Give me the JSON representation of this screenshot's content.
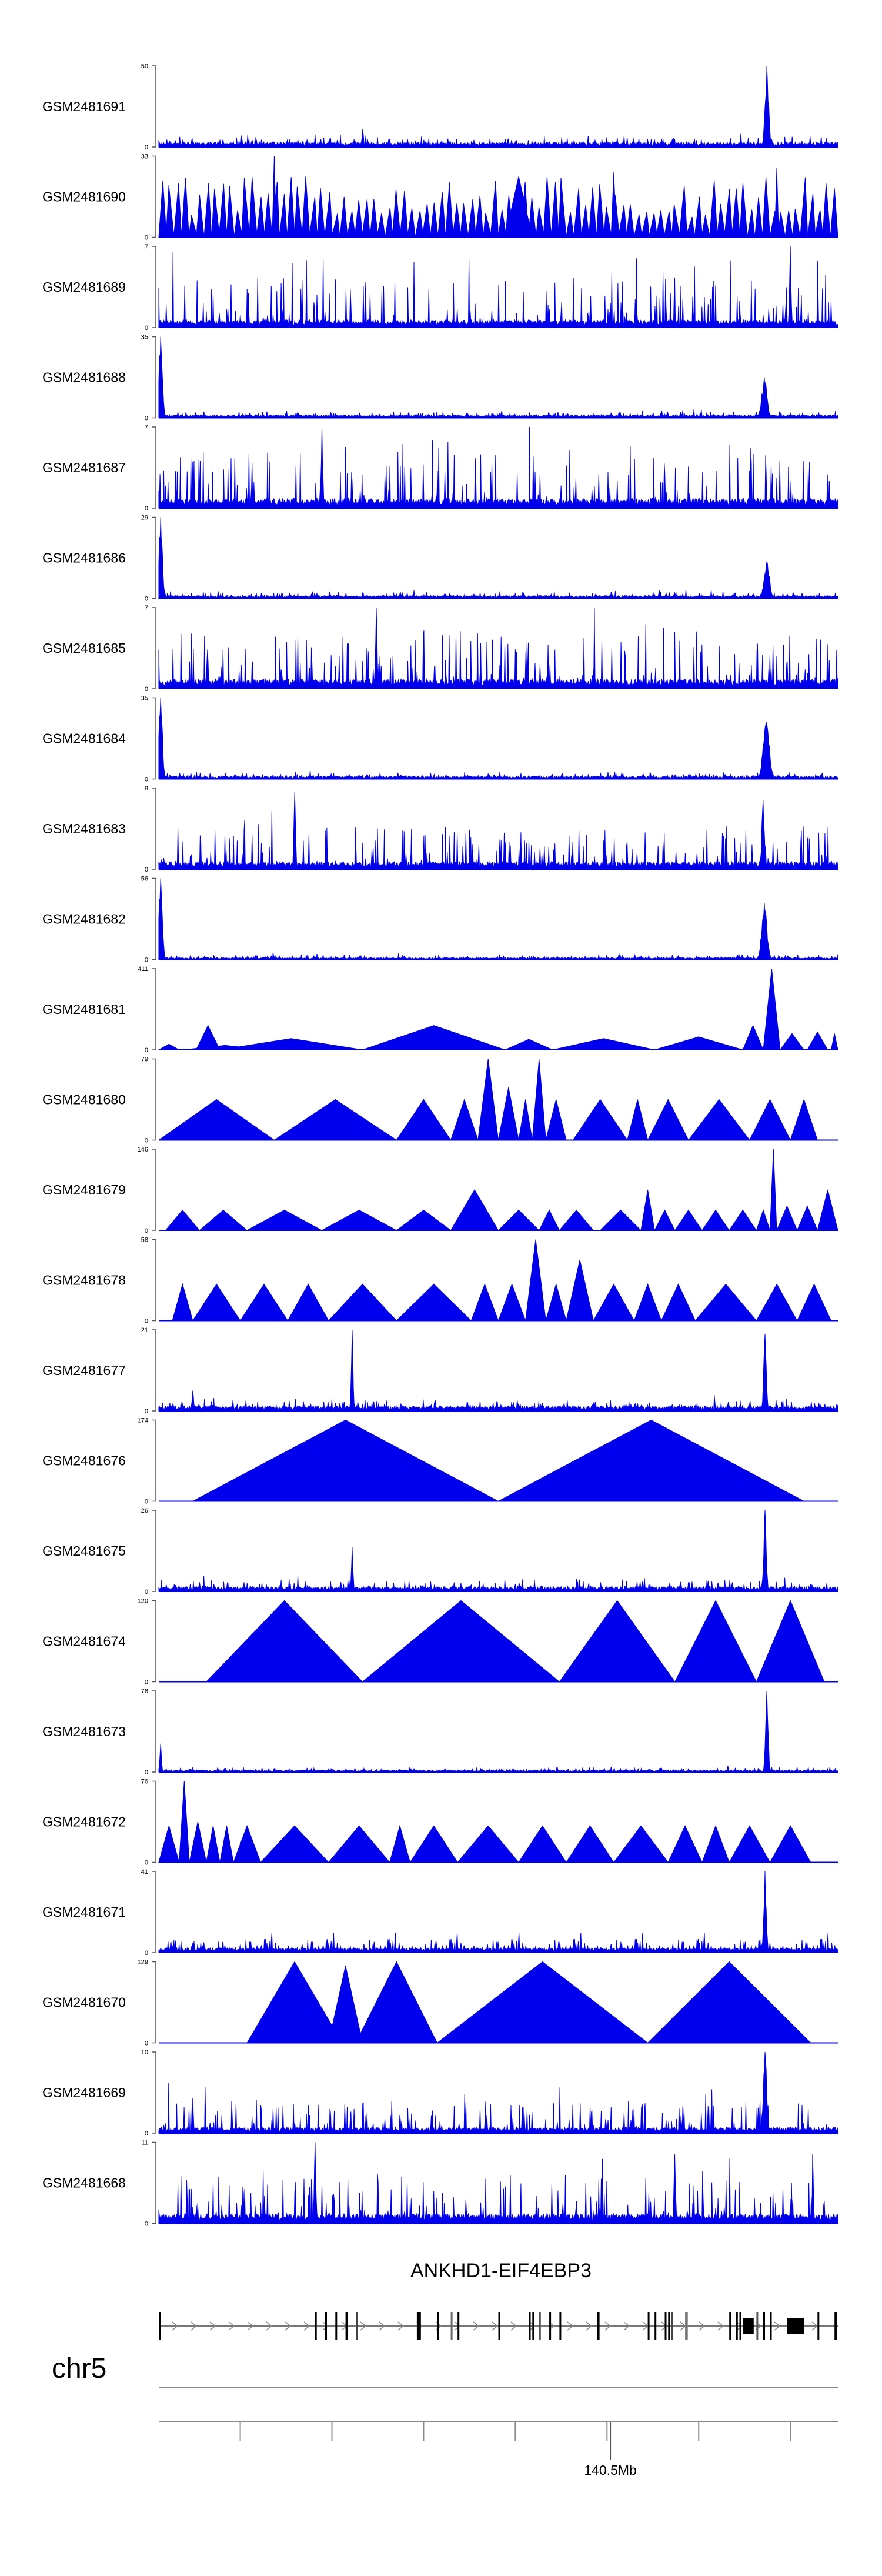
{
  "chart_data": {
    "type": "area",
    "colors": {
      "signal": "#0000ee",
      "axis": "#555555",
      "gene": "#000000"
    },
    "x_axis": {
      "label": "140.5Mb",
      "label_position": 0.665
    },
    "tracks": [
      {
        "name": "GSM2481691",
        "max_label": "50",
        "min_label": "0",
        "style": "dense",
        "max": 50,
        "baseline": 0.05,
        "noise": 0.08,
        "peaks": [
          {
            "x": 0.895,
            "h": 1.0,
            "w": 0.004
          },
          {
            "x": 0.3,
            "h": 0.22,
            "w": 0.002
          }
        ]
      },
      {
        "name": "GSM2481690",
        "max_label": "33",
        "min_label": "0",
        "style": "spiky",
        "max": 33,
        "density": 90,
        "minh": 0.25,
        "maxh": 0.75,
        "peaks": [
          {
            "x": 0.17,
            "h": 1.0,
            "w": 0.003
          },
          {
            "x": 0.53,
            "h": 0.75,
            "w": 0.02
          },
          {
            "x": 0.67,
            "h": 0.8,
            "w": 0.004
          },
          {
            "x": 0.91,
            "h": 0.85,
            "w": 0.003
          }
        ]
      },
      {
        "name": "GSM2481689",
        "max_label": "7",
        "min_label": "0",
        "style": "dense",
        "max": 7,
        "baseline": 0.08,
        "noise": 0.55,
        "peaks": [
          {
            "x": 0.93,
            "h": 1.0,
            "w": 0.002
          }
        ]
      },
      {
        "name": "GSM2481688",
        "max_label": "35",
        "min_label": "0",
        "style": "dense",
        "max": 35,
        "baseline": 0.03,
        "noise": 0.05,
        "peaks": [
          {
            "x": 0.003,
            "h": 1.0,
            "w": 0.004
          },
          {
            "x": 0.892,
            "h": 0.5,
            "w": 0.005
          }
        ]
      },
      {
        "name": "GSM2481687",
        "max_label": "7",
        "min_label": "0",
        "style": "dense",
        "max": 7,
        "baseline": 0.1,
        "noise": 0.6,
        "peaks": [
          {
            "x": 0.24,
            "h": 1.0,
            "w": 0.002
          }
        ]
      },
      {
        "name": "GSM2481686",
        "max_label": "29",
        "min_label": "0",
        "style": "dense",
        "max": 29,
        "baseline": 0.03,
        "noise": 0.06,
        "peaks": [
          {
            "x": 0.003,
            "h": 1.0,
            "w": 0.004
          },
          {
            "x": 0.895,
            "h": 0.45,
            "w": 0.005
          }
        ]
      },
      {
        "name": "GSM2481685",
        "max_label": "7",
        "min_label": "0",
        "style": "dense",
        "max": 7,
        "baseline": 0.1,
        "noise": 0.6,
        "peaks": [
          {
            "x": 0.32,
            "h": 1.0,
            "w": 0.002
          }
        ]
      },
      {
        "name": "GSM2481684",
        "max_label": "35",
        "min_label": "0",
        "style": "dense",
        "max": 35,
        "baseline": 0.03,
        "noise": 0.05,
        "peaks": [
          {
            "x": 0.003,
            "h": 1.0,
            "w": 0.004
          },
          {
            "x": 0.894,
            "h": 0.7,
            "w": 0.006
          }
        ]
      },
      {
        "name": "GSM2481683",
        "max_label": "8",
        "min_label": "0",
        "style": "dense",
        "max": 8,
        "baseline": 0.08,
        "noise": 0.45,
        "peaks": [
          {
            "x": 0.2,
            "h": 0.95,
            "w": 0.002
          },
          {
            "x": 0.89,
            "h": 0.85,
            "w": 0.003
          }
        ]
      },
      {
        "name": "GSM2481682",
        "max_label": "56",
        "min_label": "0",
        "style": "dense",
        "max": 56,
        "baseline": 0.02,
        "noise": 0.04,
        "peaks": [
          {
            "x": 0.003,
            "h": 1.0,
            "w": 0.004
          },
          {
            "x": 0.892,
            "h": 0.7,
            "w": 0.005
          }
        ]
      },
      {
        "name": "GSM2481681",
        "max_label": "411",
        "min_label": "0",
        "style": "triangles",
        "max": 411,
        "tri": [
          [
            0.0,
            0.03,
            0.07
          ],
          [
            0.035,
            0.16,
            0.055
          ],
          [
            0.055,
            0.09,
            0.3
          ],
          [
            0.09,
            0.3,
            0.14
          ],
          [
            0.3,
            0.51,
            0.3
          ],
          [
            0.51,
            0.58,
            0.13
          ],
          [
            0.58,
            0.73,
            0.14
          ],
          [
            0.73,
            0.86,
            0.16
          ],
          [
            0.86,
            0.89,
            0.3
          ],
          [
            0.89,
            0.915,
            1.0
          ],
          [
            0.915,
            0.95,
            0.2
          ],
          [
            0.955,
            0.985,
            0.22
          ],
          [
            0.99,
            1.0,
            0.2
          ]
        ]
      },
      {
        "name": "GSM2481680",
        "max_label": "79",
        "min_label": "0",
        "style": "triangles",
        "max": 79,
        "tri": [
          [
            0.0,
            0.17,
            0.5
          ],
          [
            0.17,
            0.35,
            0.5
          ],
          [
            0.35,
            0.43,
            0.5
          ],
          [
            0.43,
            0.47,
            0.5
          ],
          [
            0.47,
            0.5,
            1.0
          ],
          [
            0.5,
            0.53,
            0.65
          ],
          [
            0.53,
            0.55,
            0.5
          ],
          [
            0.55,
            0.57,
            1.0
          ],
          [
            0.57,
            0.6,
            0.5
          ],
          [
            0.61,
            0.69,
            0.5
          ],
          [
            0.69,
            0.72,
            0.5
          ],
          [
            0.72,
            0.78,
            0.5
          ],
          [
            0.78,
            0.87,
            0.5
          ],
          [
            0.87,
            0.93,
            0.5
          ],
          [
            0.93,
            0.97,
            0.5
          ]
        ]
      },
      {
        "name": "GSM2481679",
        "max_label": "146",
        "min_label": "0",
        "style": "triangles",
        "max": 146,
        "tri": [
          [
            0.01,
            0.06,
            0.25
          ],
          [
            0.06,
            0.13,
            0.25
          ],
          [
            0.13,
            0.24,
            0.25
          ],
          [
            0.24,
            0.35,
            0.25
          ],
          [
            0.35,
            0.43,
            0.25
          ],
          [
            0.43,
            0.5,
            0.5
          ],
          [
            0.5,
            0.56,
            0.25
          ],
          [
            0.56,
            0.59,
            0.25
          ],
          [
            0.59,
            0.64,
            0.25
          ],
          [
            0.65,
            0.71,
            0.25
          ],
          [
            0.71,
            0.73,
            0.5
          ],
          [
            0.73,
            0.76,
            0.25
          ],
          [
            0.76,
            0.8,
            0.25
          ],
          [
            0.8,
            0.84,
            0.25
          ],
          [
            0.84,
            0.88,
            0.25
          ],
          [
            0.88,
            0.9,
            0.25
          ],
          [
            0.9,
            0.91,
            1.0
          ],
          [
            0.91,
            0.94,
            0.3
          ],
          [
            0.94,
            0.97,
            0.3
          ],
          [
            0.97,
            1.0,
            0.5
          ]
        ]
      },
      {
        "name": "GSM2481678",
        "max_label": "58",
        "min_label": "0",
        "style": "triangles",
        "max": 58,
        "tri": [
          [
            0.02,
            0.05,
            0.45
          ],
          [
            0.05,
            0.12,
            0.45
          ],
          [
            0.12,
            0.19,
            0.45
          ],
          [
            0.19,
            0.25,
            0.45
          ],
          [
            0.25,
            0.35,
            0.45
          ],
          [
            0.35,
            0.46,
            0.45
          ],
          [
            0.46,
            0.5,
            0.45
          ],
          [
            0.5,
            0.54,
            0.45
          ],
          [
            0.54,
            0.57,
            1.0
          ],
          [
            0.57,
            0.6,
            0.45
          ],
          [
            0.6,
            0.64,
            0.75
          ],
          [
            0.64,
            0.7,
            0.45
          ],
          [
            0.7,
            0.74,
            0.45
          ],
          [
            0.74,
            0.79,
            0.45
          ],
          [
            0.79,
            0.88,
            0.45
          ],
          [
            0.88,
            0.94,
            0.45
          ],
          [
            0.94,
            0.99,
            0.45
          ]
        ]
      },
      {
        "name": "GSM2481677",
        "max_label": "21",
        "min_label": "0",
        "style": "dense",
        "max": 21,
        "baseline": 0.05,
        "noise": 0.1,
        "peaks": [
          {
            "x": 0.285,
            "h": 1.0,
            "w": 0.002
          },
          {
            "x": 0.893,
            "h": 0.95,
            "w": 0.003
          },
          {
            "x": 0.05,
            "h": 0.25,
            "w": 0.002
          }
        ]
      },
      {
        "name": "GSM2481676",
        "max_label": "174",
        "min_label": "0",
        "style": "triangles",
        "max": 174,
        "tri": [
          [
            0.05,
            0.5,
            1.0
          ],
          [
            0.5,
            0.95,
            1.0
          ]
        ]
      },
      {
        "name": "GSM2481675",
        "max_label": "26",
        "min_label": "0",
        "style": "dense",
        "max": 26,
        "baseline": 0.05,
        "noise": 0.1,
        "peaks": [
          {
            "x": 0.285,
            "h": 0.55,
            "w": 0.002
          },
          {
            "x": 0.893,
            "h": 1.0,
            "w": 0.003
          }
        ]
      },
      {
        "name": "GSM2481674",
        "max_label": "120",
        "min_label": "0",
        "style": "triangles",
        "max": 120,
        "tri": [
          [
            0.07,
            0.3,
            1.0
          ],
          [
            0.3,
            0.59,
            1.0
          ],
          [
            0.59,
            0.76,
            1.0
          ],
          [
            0.76,
            0.88,
            1.0
          ],
          [
            0.88,
            0.98,
            1.0
          ]
        ]
      },
      {
        "name": "GSM2481673",
        "max_label": "76",
        "min_label": "0",
        "style": "dense",
        "max": 76,
        "baseline": 0.02,
        "noise": 0.04,
        "peaks": [
          {
            "x": 0.895,
            "h": 1.0,
            "w": 0.003
          },
          {
            "x": 0.003,
            "h": 0.35,
            "w": 0.002
          }
        ]
      },
      {
        "name": "GSM2481672",
        "max_label": "76",
        "min_label": "0",
        "style": "triangles",
        "max": 76,
        "tri": [
          [
            0.0,
            0.03,
            0.45
          ],
          [
            0.03,
            0.045,
            1.0
          ],
          [
            0.045,
            0.07,
            0.5
          ],
          [
            0.07,
            0.09,
            0.45
          ],
          [
            0.09,
            0.11,
            0.45
          ],
          [
            0.11,
            0.15,
            0.45
          ],
          [
            0.15,
            0.25,
            0.45
          ],
          [
            0.25,
            0.34,
            0.45
          ],
          [
            0.34,
            0.37,
            0.45
          ],
          [
            0.37,
            0.44,
            0.45
          ],
          [
            0.44,
            0.53,
            0.45
          ],
          [
            0.53,
            0.6,
            0.45
          ],
          [
            0.6,
            0.67,
            0.45
          ],
          [
            0.67,
            0.75,
            0.45
          ],
          [
            0.75,
            0.8,
            0.45
          ],
          [
            0.8,
            0.84,
            0.45
          ],
          [
            0.84,
            0.9,
            0.45
          ],
          [
            0.9,
            0.96,
            0.45
          ]
        ]
      },
      {
        "name": "GSM2481671",
        "max_label": "41",
        "min_label": "0",
        "style": "dense",
        "max": 41,
        "baseline": 0.05,
        "noise": 0.12,
        "peaks": [
          {
            "x": 0.893,
            "h": 1.0,
            "w": 0.003
          }
        ]
      },
      {
        "name": "GSM2481670",
        "max_label": "129",
        "min_label": "0",
        "style": "triangles",
        "max": 129,
        "tri": [
          [
            0.13,
            0.27,
            1.0
          ],
          [
            0.25,
            0.3,
            0.95
          ],
          [
            0.29,
            0.41,
            1.0
          ],
          [
            0.41,
            0.72,
            1.0
          ],
          [
            0.72,
            0.96,
            1.0
          ]
        ]
      },
      {
        "name": "GSM2481669",
        "max_label": "10",
        "min_label": "0",
        "style": "dense",
        "max": 10,
        "baseline": 0.06,
        "noise": 0.35,
        "peaks": [
          {
            "x": 0.893,
            "h": 1.0,
            "w": 0.004
          }
        ]
      },
      {
        "name": "GSM2481668",
        "max_label": "11",
        "min_label": "0",
        "style": "dense",
        "max": 11,
        "baseline": 0.1,
        "noise": 0.5,
        "peaks": [
          {
            "x": 0.23,
            "h": 1.0,
            "w": 0.002
          },
          {
            "x": 0.76,
            "h": 0.85,
            "w": 0.002
          }
        ]
      }
    ],
    "gene": {
      "name": "ANKHD1-EIF4EBP3",
      "strand": "+",
      "exons": [
        {
          "x": 0.0,
          "w": 0.003,
          "c": "#000"
        },
        {
          "x": 0.23,
          "w": 0.0025,
          "c": "#000"
        },
        {
          "x": 0.245,
          "w": 0.0025,
          "c": "#000"
        },
        {
          "x": 0.26,
          "w": 0.0025,
          "c": "#000"
        },
        {
          "x": 0.275,
          "w": 0.003,
          "c": "#000"
        },
        {
          "x": 0.29,
          "w": 0.0025,
          "c": "#444"
        },
        {
          "x": 0.38,
          "w": 0.006,
          "c": "#000"
        },
        {
          "x": 0.41,
          "w": 0.0025,
          "c": "#000"
        },
        {
          "x": 0.43,
          "w": 0.0025,
          "c": "#666"
        },
        {
          "x": 0.44,
          "w": 0.0025,
          "c": "#000"
        },
        {
          "x": 0.5,
          "w": 0.0025,
          "c": "#000"
        },
        {
          "x": 0.545,
          "w": 0.0025,
          "c": "#000"
        },
        {
          "x": 0.55,
          "w": 0.0025,
          "c": "#000"
        },
        {
          "x": 0.56,
          "w": 0.0025,
          "c": "#555"
        },
        {
          "x": 0.575,
          "w": 0.0025,
          "c": "#000"
        },
        {
          "x": 0.59,
          "w": 0.0025,
          "c": "#000"
        },
        {
          "x": 0.645,
          "w": 0.004,
          "c": "#000"
        },
        {
          "x": 0.72,
          "w": 0.0025,
          "c": "#000"
        },
        {
          "x": 0.73,
          "w": 0.0025,
          "c": "#000"
        },
        {
          "x": 0.745,
          "w": 0.0025,
          "c": "#000"
        },
        {
          "x": 0.75,
          "w": 0.0025,
          "c": "#000"
        },
        {
          "x": 0.755,
          "w": 0.0025,
          "c": "#444"
        },
        {
          "x": 0.775,
          "w": 0.004,
          "c": "#777"
        },
        {
          "x": 0.84,
          "w": 0.0025,
          "c": "#000"
        },
        {
          "x": 0.85,
          "w": 0.0025,
          "c": "#000"
        },
        {
          "x": 0.855,
          "w": 0.0025,
          "c": "#000"
        },
        {
          "x": 0.86,
          "w": 0.016,
          "c": "#000"
        },
        {
          "x": 0.88,
          "w": 0.0025,
          "c": "#555"
        },
        {
          "x": 0.89,
          "w": 0.0025,
          "c": "#000"
        },
        {
          "x": 0.9,
          "w": 0.0025,
          "c": "#000"
        },
        {
          "x": 0.925,
          "w": 0.025,
          "c": "#000"
        },
        {
          "x": 0.97,
          "w": 0.0025,
          "c": "#000"
        },
        {
          "x": 0.995,
          "w": 0.004,
          "c": "#000"
        }
      ]
    },
    "chromosome": "chr5",
    "ideogram_ticks": [
      0.12,
      0.255,
      0.39,
      0.525,
      0.66,
      0.795,
      0.93
    ]
  }
}
